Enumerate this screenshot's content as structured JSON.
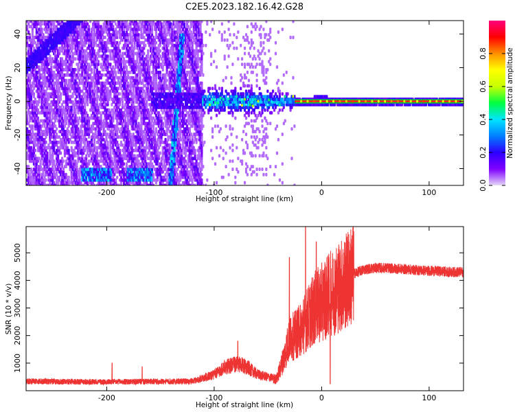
{
  "title": "C2E5.2023.182.16.42.G28",
  "chart_data": [
    {
      "type": "heatmap",
      "name": "spectrogram",
      "xlabel": "Height of straight line (km)",
      "ylabel": "Frequency (Hz)",
      "xlim": [
        -275,
        132
      ],
      "ylim": [
        -50,
        48
      ],
      "x_ticks": [
        -200,
        -100,
        0,
        100
      ],
      "x_tick_labels": [
        "-200",
        "-100",
        "0",
        "100"
      ],
      "y_ticks": [
        -40,
        -20,
        0,
        20,
        40
      ],
      "y_tick_labels": [
        "-40",
        "-20",
        "0",
        "20",
        "40"
      ],
      "colorbar": {
        "label": "Normalized spectral amplitude",
        "range": [
          0,
          1
        ],
        "ticks": [
          0,
          0.2,
          0.4,
          0.6,
          0.8
        ],
        "tick_labels": [
          "0.0",
          "0.2",
          "0.4",
          "0.6",
          "0.8"
        ],
        "colors": [
          "#e6d6f7",
          "#7f00ff",
          "#2d00ff",
          "#0080ff",
          "#00e5ff",
          "#00ff40",
          "#c8ff00",
          "#ffff00",
          "#ff9000",
          "#ff0000",
          "#ff0080"
        ]
      },
      "main_line": {
        "x_start": -25,
        "x_end": 132,
        "y": 0
      }
    },
    {
      "type": "line",
      "name": "snr",
      "xlabel": "Height of straight line (km)",
      "ylabel": "SNR (10 * v/v)",
      "xlim": [
        -275,
        132
      ],
      "ylim": [
        0,
        5950
      ],
      "x_ticks": [
        -200,
        -100,
        0,
        100
      ],
      "x_tick_labels": [
        "-200",
        "-100",
        "0",
        "100"
      ],
      "y_ticks": [
        1000,
        2000,
        3000,
        4000,
        5000
      ],
      "y_tick_labels": [
        "1000",
        "2000",
        "3000",
        "4000",
        "5000"
      ],
      "color": "#ee3333",
      "envelope": {
        "x": [
          -275,
          -250,
          -200,
          -150,
          -120,
          -100,
          -90,
          -80,
          -70,
          -60,
          -50,
          -42,
          -35,
          -30,
          -25,
          -20,
          -15,
          -10,
          -5,
          0,
          5,
          10,
          15,
          20,
          25,
          30,
          40,
          50,
          60,
          70,
          80,
          90,
          100,
          110,
          120,
          132
        ],
        "y": [
          320,
          310,
          300,
          310,
          320,
          550,
          800,
          900,
          820,
          560,
          460,
          420,
          1200,
          1900,
          2000,
          2200,
          2500,
          2800,
          3050,
          3200,
          3400,
          3550,
          3750,
          3850,
          4050,
          4250,
          4400,
          4450,
          4450,
          4420,
          4400,
          4370,
          4350,
          4330,
          4300,
          4300
        ]
      },
      "spikes": [
        {
          "x": -30,
          "y": 4830
        },
        {
          "x": -15,
          "y": 5950
        },
        {
          "x": -5,
          "y": 5400
        },
        {
          "x": 8,
          "y": 5780
        },
        {
          "x": 8,
          "y": 250
        },
        {
          "x": -78,
          "y": 1800
        },
        {
          "x": -195,
          "y": 1000
        },
        {
          "x": -167,
          "y": 870
        }
      ]
    }
  ]
}
